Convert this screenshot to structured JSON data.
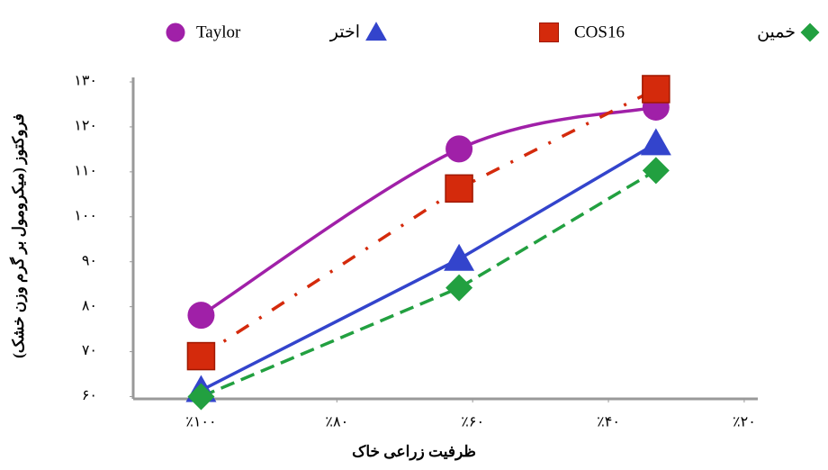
{
  "chart_data": {
    "type": "line",
    "ylabel": "فروکتوز (میکرومول بر گرم وزن خشک)",
    "xlabel": "ظرفیت زراعی خاک",
    "x": [
      100,
      62,
      33
    ],
    "xlim": [
      110,
      18
    ],
    "xticks": [
      {
        "value": 100,
        "label": "٪۱۰۰"
      },
      {
        "value": 80,
        "label": "٪۸۰"
      },
      {
        "value": 60,
        "label": "٪۶۰"
      },
      {
        "value": 40,
        "label": "٪۴۰"
      },
      {
        "value": 20,
        "label": "٪۲۰"
      }
    ],
    "ylim": [
      59.5,
      131
    ],
    "yticks": [
      {
        "value": 60,
        "label": "۶۰"
      },
      {
        "value": 70,
        "label": "۷۰"
      },
      {
        "value": 80,
        "label": "۸۰"
      },
      {
        "value": 90,
        "label": "۹۰"
      },
      {
        "value": 100,
        "label": "۱۰۰"
      },
      {
        "value": 110,
        "label": "۱۱۰"
      },
      {
        "value": 120,
        "label": "۱۲۰"
      },
      {
        "value": 130,
        "label": "۱۳۰"
      }
    ],
    "series": [
      {
        "name": "Taylor",
        "color": "#a020a8",
        "marker": "circle",
        "style": "solid",
        "smooth": true,
        "values": [
          78.1,
          115.1,
          124.4
        ]
      },
      {
        "name": "اختر",
        "color": "#3344cc",
        "marker": "triangle",
        "style": "solid",
        "smooth": false,
        "values": [
          61.4,
          90.6,
          116.3
        ]
      },
      {
        "name": "COS16",
        "color": "#d42a0c",
        "marker": "square",
        "style": "dashdot",
        "smooth": false,
        "values": [
          69,
          106.3,
          128.4
        ]
      },
      {
        "name": "خمین",
        "color": "#22a040",
        "marker": "diamond",
        "style": "dashed",
        "smooth": false,
        "values": [
          60,
          84.2,
          110.3
        ]
      }
    ]
  }
}
